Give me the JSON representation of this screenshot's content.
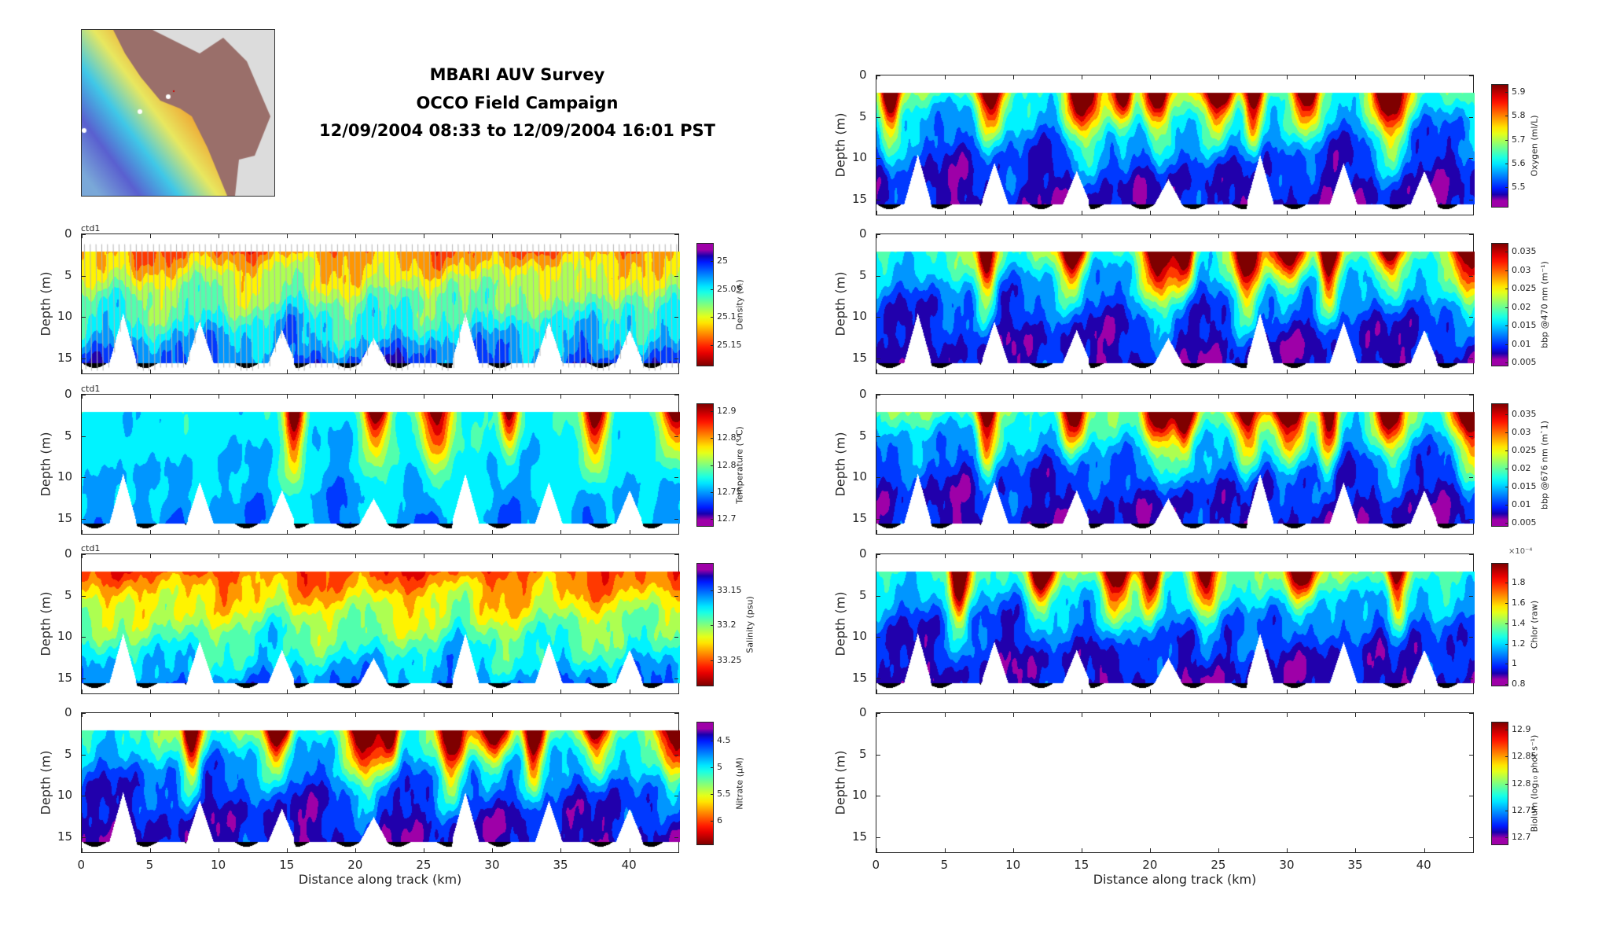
{
  "header": {
    "line1": "MBARI AUV Survey",
    "line2": "OCCO Field Campaign",
    "line3": "12/09/2004 08:33 to 12/09/2004 16:01 PST"
  },
  "colors": {
    "axis": "#262626",
    "profile_lines": "#b4b4b4",
    "land": "#9a6f6a",
    "map_bg": "#dcdcdc"
  },
  "chart_data": {
    "type": "heatmap",
    "xlabel": "Distance along track (km)",
    "ylabel": "Depth (m)",
    "xlim": [
      0,
      43.7
    ],
    "ylim": [
      0,
      17
    ],
    "xticks": [
      "0",
      "5",
      "10",
      "15",
      "20",
      "25",
      "30",
      "35",
      "40"
    ],
    "yticks": [
      "0",
      "5",
      "10",
      "15"
    ],
    "data_depth_range": [
      2,
      15.5
    ],
    "gap_centers_km": [
      3,
      8.6,
      14.6,
      21.3,
      28,
      34.1,
      40
    ],
    "panels": [
      {
        "id": "density",
        "column": "left",
        "label": "ctd1",
        "cbar_label": "Density (σₜ)",
        "cbar_ticks": [
          "25",
          "25.05",
          "25.1",
          "25.15"
        ],
        "clim_top": 24.968,
        "clim_bottom": 25.188,
        "reversed": true,
        "profile_lines": true,
        "hot_km": [
          3,
          9,
          15,
          21,
          27,
          33,
          40
        ]
      },
      {
        "id": "temperature",
        "column": "left",
        "label": "ctd1",
        "cbar_label": "Temperature (° C)",
        "cbar_ticks": [
          "12.9",
          "12.85",
          "12.8",
          "12.75",
          "12.7"
        ],
        "clim_top": 12.914,
        "clim_bottom": 12.686,
        "reversed": false,
        "hot_km": [
          15.5,
          21.5,
          25.8,
          31.2,
          37.5,
          43.5
        ]
      },
      {
        "id": "salinity",
        "column": "left",
        "label": "ctd1",
        "cbar_label": "Salinity (psu)",
        "cbar_ticks": [
          "33.15",
          "33.2",
          "33.25"
        ],
        "clim_top": 33.111,
        "clim_bottom": 33.287,
        "reversed": true,
        "hot_km": [
          3,
          9,
          14.5,
          21,
          27.5,
          34,
          40
        ]
      },
      {
        "id": "nitrate",
        "column": "left",
        "label": "",
        "cbar_label": "Nitrate (μM)",
        "cbar_ticks": [
          "4.5",
          "5",
          "5.5",
          "6"
        ],
        "clim_top": 4.148,
        "clim_bottom": 6.46,
        "reversed": true,
        "hot_km": [
          8,
          14.3,
          20.7,
          22.5,
          27,
          30,
          33,
          37.5,
          43.3
        ]
      },
      {
        "id": "oxygen",
        "column": "right",
        "label": "",
        "cbar_label": "Oxygen (ml/L)",
        "cbar_ticks": [
          "5.9",
          "5.8",
          "5.7",
          "5.6",
          "5.5"
        ],
        "clim_top": 5.934,
        "clim_bottom": 5.413,
        "reversed": false,
        "hot_km": [
          1,
          8.2,
          15,
          18,
          20.5,
          25,
          27.5,
          31.5,
          37.5
        ]
      },
      {
        "id": "bbp470",
        "column": "right",
        "label": "",
        "cbar_label": "bbp @470 nm (m⁻¹)",
        "cbar_ticks": [
          "0.035",
          "0.03",
          "0.025",
          "0.02",
          "0.015",
          "0.01",
          "0.005"
        ],
        "clim_top": 0.03737,
        "clim_bottom": 0.00393,
        "reversed": false,
        "hot_km": [
          8,
          14.3,
          20.7,
          22.5,
          27,
          30,
          33,
          37.5,
          43.3
        ]
      },
      {
        "id": "bbp676",
        "column": "right",
        "label": "",
        "cbar_label": "bbp @676 nm (m`1)",
        "cbar_ticks": [
          "0.035",
          "0.03",
          "0.025",
          "0.02",
          "0.015",
          "0.01",
          "0.005"
        ],
        "clim_top": 0.03815,
        "clim_bottom": 0.00391,
        "reversed": false,
        "hot_km": [
          8,
          14.3,
          20.7,
          22.5,
          27,
          30,
          33,
          37.5,
          43.3
        ]
      },
      {
        "id": "chlor",
        "column": "right",
        "label": "",
        "cbar_label": "Chlor (raw)",
        "cbar_multiplier": "×10⁻⁴",
        "cbar_ticks": [
          "1.8",
          "1.6",
          "1.4",
          "1.2",
          "1",
          "0.8"
        ],
        "clim_top": 1.99,
        "clim_bottom": 0.78,
        "reversed": false,
        "hot_km": [
          6,
          12,
          17.5,
          20,
          24,
          31,
          38
        ]
      },
      {
        "id": "biolum",
        "column": "right",
        "label": "",
        "cbar_label": "Biolum (log₁₀ phot s⁻¹)",
        "cbar_ticks": [
          "12.9",
          "12.85",
          "12.8",
          "12.75",
          "12.7"
        ],
        "clim_top": 12.915,
        "clim_bottom": 12.685,
        "reversed": false,
        "empty": true,
        "hot_km": []
      }
    ]
  }
}
